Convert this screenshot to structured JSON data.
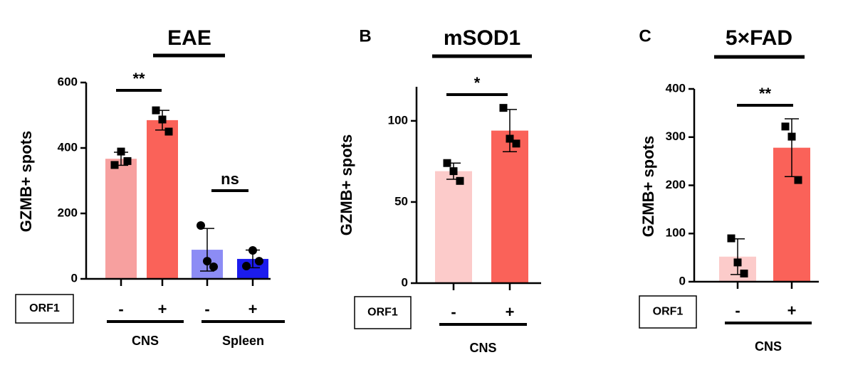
{
  "chart_data": [
    {
      "type": "bar",
      "title": "EAE",
      "ylabel": "GZMB+ spots",
      "row_label": "ORF1",
      "categories": [
        "-",
        "+",
        "-",
        "+"
      ],
      "group_labels": [
        "CNS",
        "Spleen"
      ],
      "values": [
        367,
        485,
        89,
        61
      ],
      "errors": [
        20,
        30,
        65,
        27
      ],
      "points": [
        [
          348,
          389,
          360
        ],
        [
          515,
          487,
          450
        ],
        [
          163,
          54,
          37
        ],
        [
          39,
          87,
          54
        ]
      ],
      "markers": [
        "square",
        "square",
        "circle",
        "circle"
      ],
      "colors": [
        "#f7a09f",
        "#fa6259",
        "#8c8cf5",
        "#1c1ced"
      ],
      "significance": [
        "**",
        "ns"
      ],
      "ylim": [
        0,
        600
      ],
      "yticks": [
        0,
        200,
        400,
        600
      ]
    },
    {
      "type": "bar",
      "panel_label": "B",
      "title": "mSOD1",
      "ylabel": "GZMB+ spots",
      "row_label": "ORF1",
      "categories": [
        "-",
        "+"
      ],
      "group_labels": [
        "CNS"
      ],
      "values": [
        69,
        94
      ],
      "errors": [
        5,
        13
      ],
      "points": [
        [
          74,
          69,
          63
        ],
        [
          108,
          89,
          86
        ]
      ],
      "markers": [
        "square",
        "square"
      ],
      "colors": [
        "#fccbca",
        "#fa6259"
      ],
      "significance": [
        "*"
      ],
      "ylim": [
        0,
        121
      ],
      "yticks": [
        0,
        50,
        100
      ]
    },
    {
      "type": "bar",
      "panel_label": "C",
      "title": "5×FAD",
      "ylabel": "GZMB+ spots",
      "row_label": "ORF1",
      "categories": [
        "-",
        "+"
      ],
      "group_labels": [
        "CNS"
      ],
      "values": [
        52,
        278
      ],
      "errors": [
        37,
        60
      ],
      "points": [
        [
          90,
          40,
          17
        ],
        [
          322,
          301,
          211
        ]
      ],
      "markers": [
        "square",
        "square"
      ],
      "colors": [
        "#fccbca",
        "#fa6259"
      ],
      "significance": [
        "**"
      ],
      "ylim": [
        0,
        400
      ],
      "yticks": [
        0,
        100,
        200,
        300,
        400
      ]
    }
  ]
}
